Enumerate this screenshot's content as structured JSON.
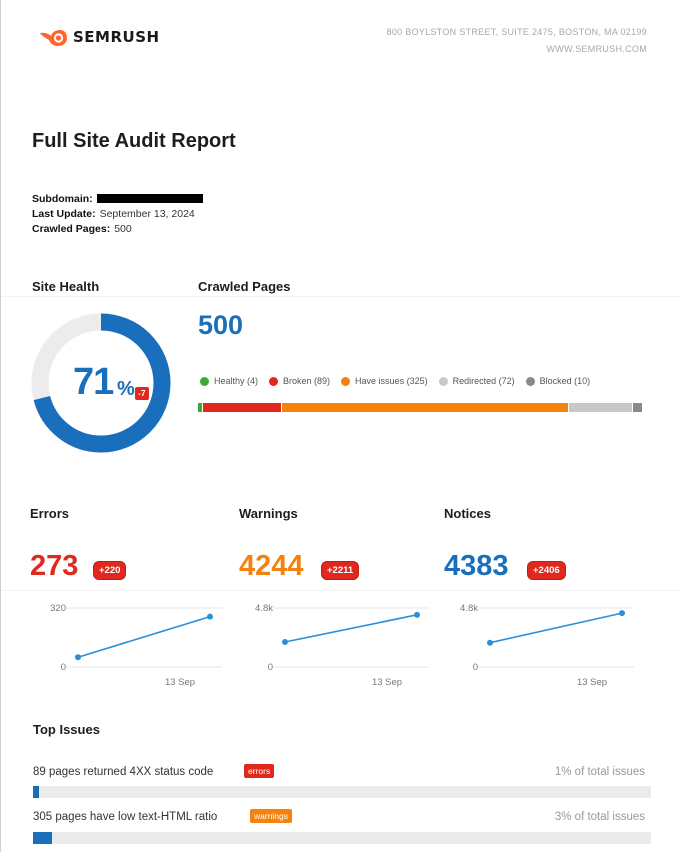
{
  "header": {
    "brand": "SEMRUSH",
    "address_line": "800 BOYLSTON STREET, SUITE 2475, BOSTON, MA 02199",
    "website": "WWW.SEMRUSH.COM"
  },
  "report": {
    "title": "Full Site Audit Report",
    "subdomain_label": "Subdomain:",
    "last_update_label": "Last Update:",
    "last_update_value": "September 13, 2024",
    "crawled_pages_label": "Crawled Pages:",
    "crawled_pages_value": "500"
  },
  "site_health": {
    "heading": "Site Health",
    "value": "71",
    "percent": 71,
    "unit": "%",
    "delta": "-7",
    "colors": {
      "filled": "#1a6fbd",
      "track": "#ececec"
    }
  },
  "crawled_pages": {
    "heading": "Crawled Pages",
    "total": "500",
    "legend": [
      {
        "label": "Healthy (4)",
        "count": 4,
        "color": "#3aa935"
      },
      {
        "label": "Broken (89)",
        "count": 89,
        "color": "#e0281e"
      },
      {
        "label": "Have issues (325)",
        "count": 325,
        "color": "#f5820d"
      },
      {
        "label": "Redirected (72)",
        "count": 72,
        "color": "#c8c8c8"
      },
      {
        "label": "Blocked (10)",
        "count": 10,
        "color": "#8a8a8a"
      }
    ]
  },
  "metrics": [
    {
      "heading": "Errors",
      "value": "273",
      "delta": "+220",
      "color": "#e0281e",
      "chart": {
        "ymax_label": "320",
        "ymin_label": "0",
        "ymax": 320,
        "points": [
          53,
          273
        ],
        "x_label": "13 Sep"
      }
    },
    {
      "heading": "Warnings",
      "value": "4244",
      "delta": "+2211",
      "color": "#f5820d",
      "chart": {
        "ymax_label": "4.8k",
        "ymin_label": "0",
        "ymax": 4800,
        "points": [
          2033,
          4244
        ],
        "x_label": "13 Sep"
      }
    },
    {
      "heading": "Notices",
      "value": "4383",
      "delta": "+2406",
      "color": "#1a6fbd",
      "chart": {
        "ymax_label": "4.8k",
        "ymin_label": "0",
        "ymax": 4800,
        "points": [
          1977,
          4383
        ],
        "x_label": "13 Sep"
      }
    }
  ],
  "top_issues": {
    "heading": "Top Issues",
    "items": [
      {
        "text": "89 pages returned 4XX status code",
        "tag": "errors",
        "tag_color": "#e0281e",
        "pct_text": "1% of total issues",
        "fill": 0.01
      },
      {
        "text": "305 pages have low text-HTML ratio",
        "tag": "warnings",
        "tag_color": "#f5820d",
        "pct_text": "3% of total issues",
        "fill": 0.03
      }
    ]
  }
}
